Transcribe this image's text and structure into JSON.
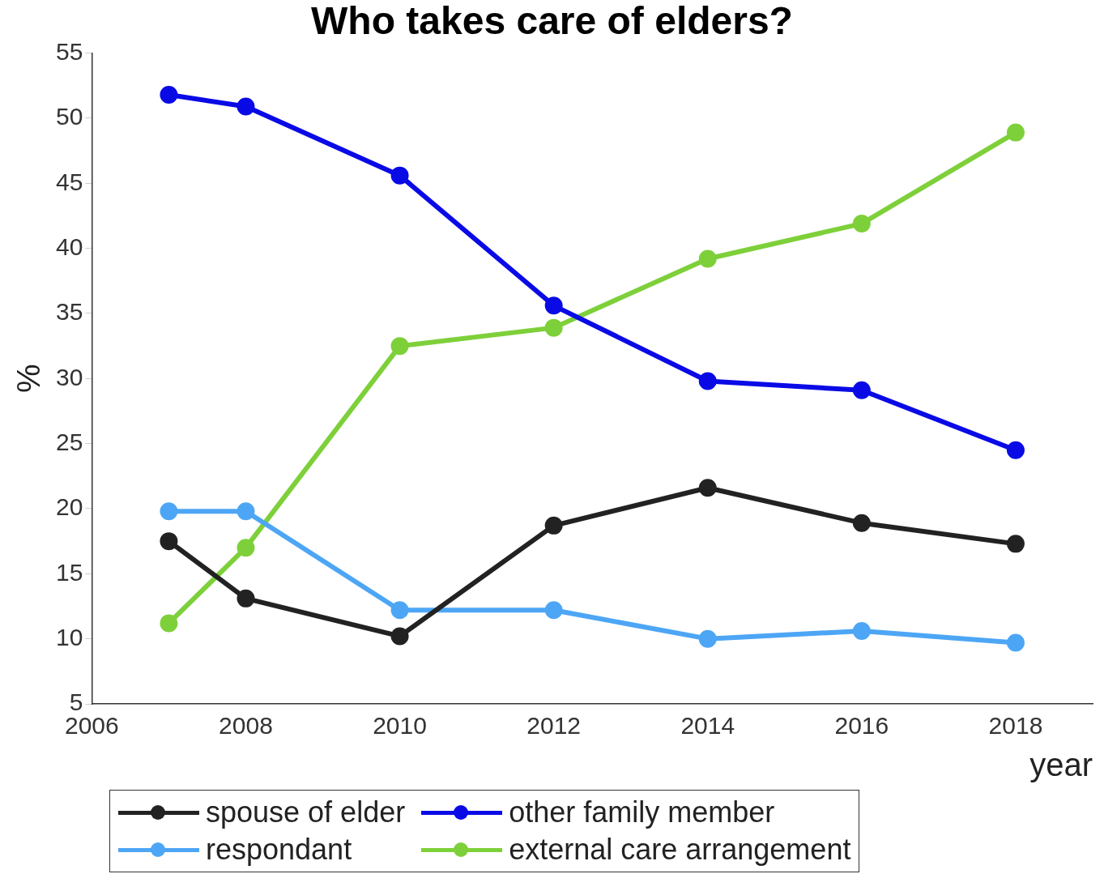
{
  "chart_data": {
    "type": "line",
    "title": "Who takes care of elders?",
    "xlabel": "year",
    "ylabel": "%",
    "x": [
      2007,
      2008,
      2010,
      2012,
      2014,
      2016,
      2018
    ],
    "xlim": [
      2006,
      2019
    ],
    "xticks": [
      2006,
      2008,
      2010,
      2012,
      2014,
      2016,
      2018
    ],
    "ylim": [
      5,
      55
    ],
    "yticks": [
      5,
      10,
      15,
      20,
      25,
      30,
      35,
      40,
      45,
      50,
      55
    ],
    "series": [
      {
        "name": "spouse of elder",
        "color": "#222222",
        "values": [
          17.5,
          13.1,
          10.2,
          18.7,
          21.6,
          18.9,
          17.3
        ]
      },
      {
        "name": "other family member",
        "color": "#0a0ae6",
        "values": [
          51.8,
          50.9,
          45.6,
          35.6,
          29.8,
          29.1,
          24.5
        ]
      },
      {
        "name": "respondant",
        "color": "#4da6f5",
        "values": [
          19.8,
          19.8,
          12.2,
          12.2,
          10.0,
          10.6,
          9.7
        ]
      },
      {
        "name": "external care arrangement",
        "color": "#7ed03a",
        "values": [
          11.2,
          17.0,
          32.5,
          33.9,
          39.2,
          41.9,
          48.9
        ]
      }
    ],
    "marker": "circle",
    "line_style": "solid",
    "grid": false,
    "legend": "bottom"
  }
}
